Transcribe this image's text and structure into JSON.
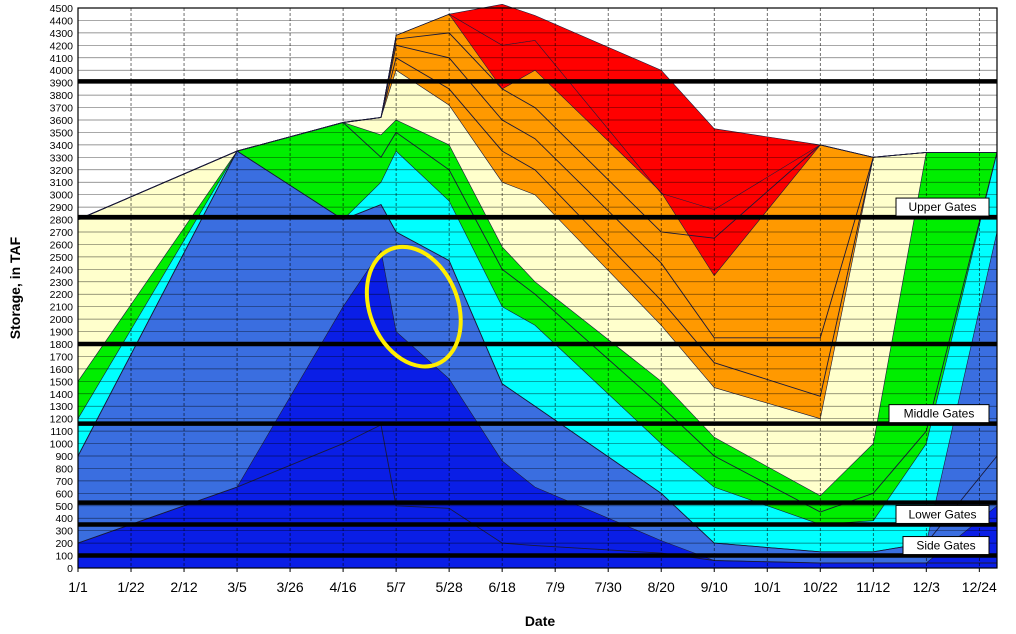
{
  "chart_data": {
    "type": "area",
    "title": "",
    "xlabel": "Date",
    "ylabel": "Storage, in TAF",
    "ylim": [
      0,
      4500
    ],
    "y_ticks": [
      0,
      100,
      200,
      300,
      400,
      500,
      600,
      700,
      800,
      900,
      1000,
      1100,
      1200,
      1300,
      1400,
      1500,
      1600,
      1700,
      1800,
      1900,
      2000,
      2100,
      2200,
      2300,
      2400,
      2500,
      2600,
      2700,
      2800,
      2900,
      3000,
      3100,
      3200,
      3300,
      3400,
      3500,
      3600,
      3700,
      3800,
      3900,
      4000,
      4100,
      4200,
      4300,
      4400,
      4500
    ],
    "x_tick_labels": [
      "1/1",
      "1/22",
      "2/12",
      "3/5",
      "3/26",
      "4/16",
      "5/7",
      "5/28",
      "6/18",
      "7/9",
      "7/30",
      "8/20",
      "9/10",
      "10/1",
      "10/22",
      "11/12",
      "12/3",
      "12/24"
    ],
    "x_dates": [
      "1/1",
      "3/5",
      "4/16",
      "5/1",
      "5/7",
      "5/28",
      "6/18",
      "7/1",
      "8/20",
      "9/10",
      "10/22",
      "11/12",
      "12/3",
      "12/31"
    ],
    "grid": true,
    "legend": "none",
    "bands": [
      {
        "color": "#0a1ee6",
        "values": [
          0,
          0,
          0,
          0,
          0,
          0,
          0,
          0,
          0,
          0,
          0,
          0,
          0,
          0
        ]
      },
      {
        "color": "#0a1ee6",
        "values": [
          200,
          650,
          2100,
          2550,
          1900,
          1520,
          860,
          650,
          220,
          60,
          40,
          40,
          40,
          500
        ]
      },
      {
        "color": "#3a6ee0",
        "values": [
          900,
          3350,
          2800,
          2920,
          2700,
          2470,
          1480,
          1300,
          600,
          200,
          130,
          130,
          200,
          2700
        ]
      },
      {
        "color": "#00ffff",
        "values": [
          1200,
          3350,
          2800,
          3100,
          3350,
          2950,
          2100,
          1950,
          1000,
          650,
          350,
          380,
          1000,
          3340
        ]
      },
      {
        "color": "#00ee00",
        "values": [
          1500,
          3350,
          3580,
          3480,
          3600,
          3400,
          2580,
          2300,
          1500,
          1050,
          580,
          1000,
          3340,
          3340
        ]
      },
      {
        "color": "#ffffcc",
        "values": [
          2800,
          3350,
          3580,
          3620,
          4000,
          3720,
          3100,
          3000,
          1950,
          1450,
          1200,
          3300,
          3340,
          3340
        ]
      },
      {
        "color": "#ff9900",
        "values": [
          2800,
          3350,
          3580,
          3620,
          4280,
          4450,
          3850,
          4000,
          3020,
          2350,
          3400,
          3300,
          3340,
          3340
        ]
      },
      {
        "color": "#ff0000",
        "values": [
          2800,
          3350,
          3580,
          3620,
          4280,
          4450,
          4200,
          4240,
          3010,
          2880,
          3400,
          3300,
          3340,
          3340
        ]
      },
      {
        "color": "#ff0000",
        "values": [
          2800,
          3350,
          3580,
          3620,
          4280,
          4450,
          4530,
          4440,
          4000,
          3530,
          3400,
          3300,
          3340,
          3340
        ]
      }
    ],
    "contour_lines": [
      [
        200,
        650,
        1000,
        1150,
        500,
        480,
        200,
        180,
        120,
        60,
        40,
        40,
        40,
        40
      ],
      [
        900,
        3350,
        2800,
        2920,
        2700,
        2470,
        1480,
        1300,
        600,
        200,
        130,
        130,
        200,
        900
      ],
      [
        2800,
        3350,
        3580,
        3300,
        3500,
        3200,
        2400,
        2200,
        1300,
        900,
        450,
        600,
        1100,
        3340
      ],
      [
        2800,
        3350,
        3580,
        3620,
        4100,
        3850,
        3350,
        3200,
        2150,
        1650,
        1380,
        3300,
        3340,
        3340
      ],
      [
        2800,
        3350,
        3580,
        3620,
        4200,
        4100,
        3600,
        3450,
        2450,
        1850,
        1850,
        3300,
        3340,
        3340
      ],
      [
        2800,
        3350,
        3580,
        3620,
        4250,
        4300,
        3850,
        3700,
        2700,
        2650,
        3400,
        3300,
        3340,
        3340
      ]
    ],
    "thresholds": [
      {
        "value": 3910,
        "label": ""
      },
      {
        "value": 2820,
        "label": "Upper Gates"
      },
      {
        "value": 1800,
        "label": ""
      },
      {
        "value": 1160,
        "label": "Middle Gates"
      },
      {
        "value": 525,
        "label": ""
      },
      {
        "value": 350,
        "label": "Lower Gates"
      },
      {
        "value": 100,
        "label": "Side Gates"
      }
    ],
    "highlight": {
      "shape": "ellipse",
      "color": "#ffee00",
      "x_date": "5/14",
      "y_value": 2100
    }
  }
}
